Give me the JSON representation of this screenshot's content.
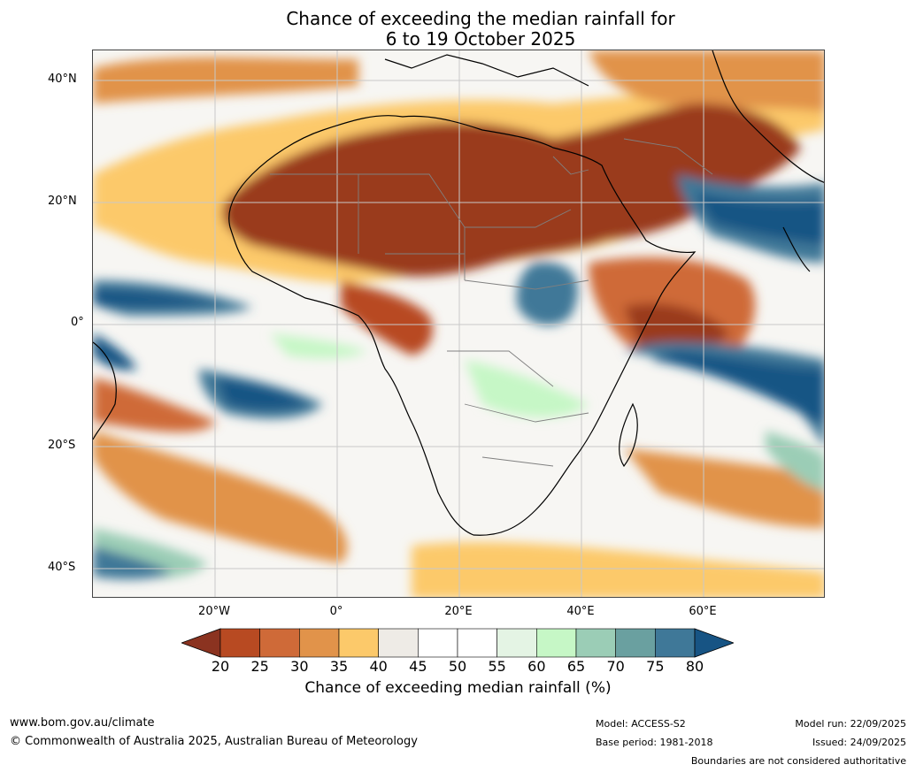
{
  "title": {
    "line1": "Chance of exceeding the median rainfall for",
    "line2": "6 to 19 October 2025"
  },
  "map": {
    "lat_labels": [
      "40°N",
      "20°N",
      "0°",
      "20°S",
      "40°S"
    ],
    "lat_values": [
      40,
      20,
      0,
      -20,
      -40
    ],
    "lon_labels": [
      "20°W",
      "0°",
      "20°E",
      "40°E",
      "60°E"
    ],
    "lon_values": [
      -20,
      0,
      20,
      40,
      60
    ],
    "lon_range": [
      -40,
      80
    ],
    "lat_range": [
      -45,
      45
    ],
    "background": "#ffffff",
    "gridline_color": "#c8c8c8"
  },
  "colorbar": {
    "ticks": [
      "20",
      "25",
      "30",
      "35",
      "40",
      "45",
      "50",
      "55",
      "60",
      "65",
      "70",
      "75",
      "80"
    ],
    "colors": [
      "#9a3a1a",
      "#b84a22",
      "#cf6a38",
      "#e1934a",
      "#fcc96a",
      "#eeebe6",
      "#ffffff",
      "#ffffff",
      "#e4f4e4",
      "#c6f7c6",
      "#9bcdb6",
      "#6aa0a0",
      "#3f7898"
    ],
    "under_color": "#8b3320",
    "over_color": "#175484",
    "label": "Chance of exceeding median rainfall (%)"
  },
  "footer": {
    "website": "www.bom.gov.au/climate",
    "copyright": "© Commonwealth of Australia 2025, Australian Bureau of Meteorology",
    "model": "Model: ACCESS-S2",
    "base_period": "Base period: 1981-2018",
    "model_run": "Model run: 22/09/2025",
    "issued": "Issued: 24/09/2025",
    "disclaimer": "Boundaries are not considered authoritative"
  }
}
